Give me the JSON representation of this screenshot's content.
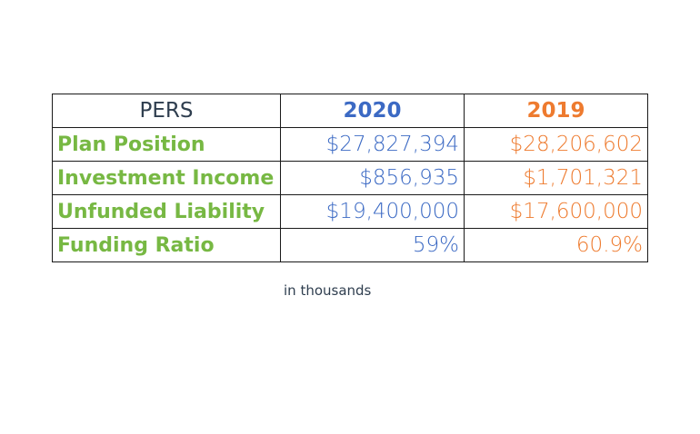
{
  "table": {
    "header": {
      "label": "PERS",
      "col_2020": "2020",
      "col_2019": "2019"
    },
    "rows": [
      {
        "label": "Plan Position",
        "v2020": "$27,827,394",
        "v2019": "$28,206,602"
      },
      {
        "label": "Investment Income",
        "v2020": "$856,935",
        "v2019": "$1,701,321"
      },
      {
        "label": "Unfunded Liability",
        "v2020": "$19,400,000",
        "v2019": "$17,600,000"
      },
      {
        "label": "Funding Ratio",
        "v2020": "59%",
        "v2019": "60.9%"
      }
    ]
  },
  "note": "in thousands",
  "colors": {
    "label_green": "#77b843",
    "year_2020_blue": "#3c6ac4",
    "year_2019_orange": "#ee7b2f",
    "header_dark": "#2f3e4f",
    "border": "#1a1a1a"
  }
}
